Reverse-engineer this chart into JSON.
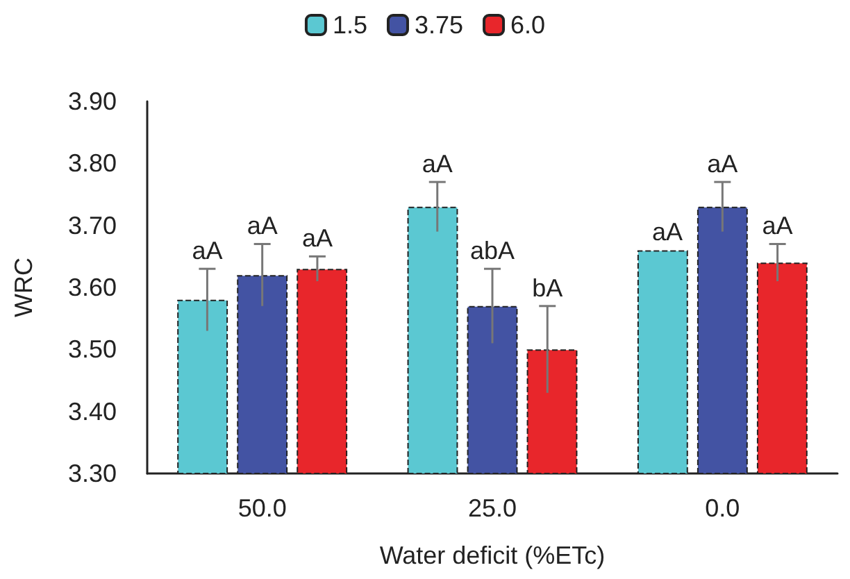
{
  "chart_data": {
    "type": "bar",
    "xlabel": "Water deficit (%ETc)",
    "ylabel": "WRC",
    "categories": [
      "50.0",
      "25.0",
      "0.0"
    ],
    "series": [
      {
        "name": "1.5",
        "color": "#5bc8d2",
        "values": [
          3.58,
          3.73,
          3.66
        ],
        "errors": [
          0.05,
          0.04,
          null
        ],
        "value_labels": [
          "aA",
          "aA",
          "aA"
        ]
      },
      {
        "name": "3.75",
        "color": "#4353a3",
        "values": [
          3.62,
          3.57,
          3.73
        ],
        "errors": [
          0.05,
          0.06,
          0.04
        ],
        "value_labels": [
          "aA",
          "abA",
          "aA"
        ]
      },
      {
        "name": "6.0",
        "color": "#e8262b",
        "values": [
          3.63,
          3.5,
          3.64
        ],
        "errors": [
          0.02,
          0.07,
          0.03
        ],
        "value_labels": [
          "aA",
          "bA",
          "aA"
        ]
      }
    ],
    "ylim": [
      3.3,
      3.9
    ],
    "yticks": [
      {
        "value": 3.3,
        "label": "3.30"
      },
      {
        "value": 3.4,
        "label": "3.40"
      },
      {
        "value": 3.5,
        "label": "3.50"
      },
      {
        "value": 3.6,
        "label": "3.60"
      },
      {
        "value": 3.7,
        "label": "3.70"
      },
      {
        "value": 3.8,
        "label": "3.80"
      },
      {
        "value": 3.9,
        "label": "3.90"
      }
    ],
    "grid": false,
    "legend": "top"
  }
}
